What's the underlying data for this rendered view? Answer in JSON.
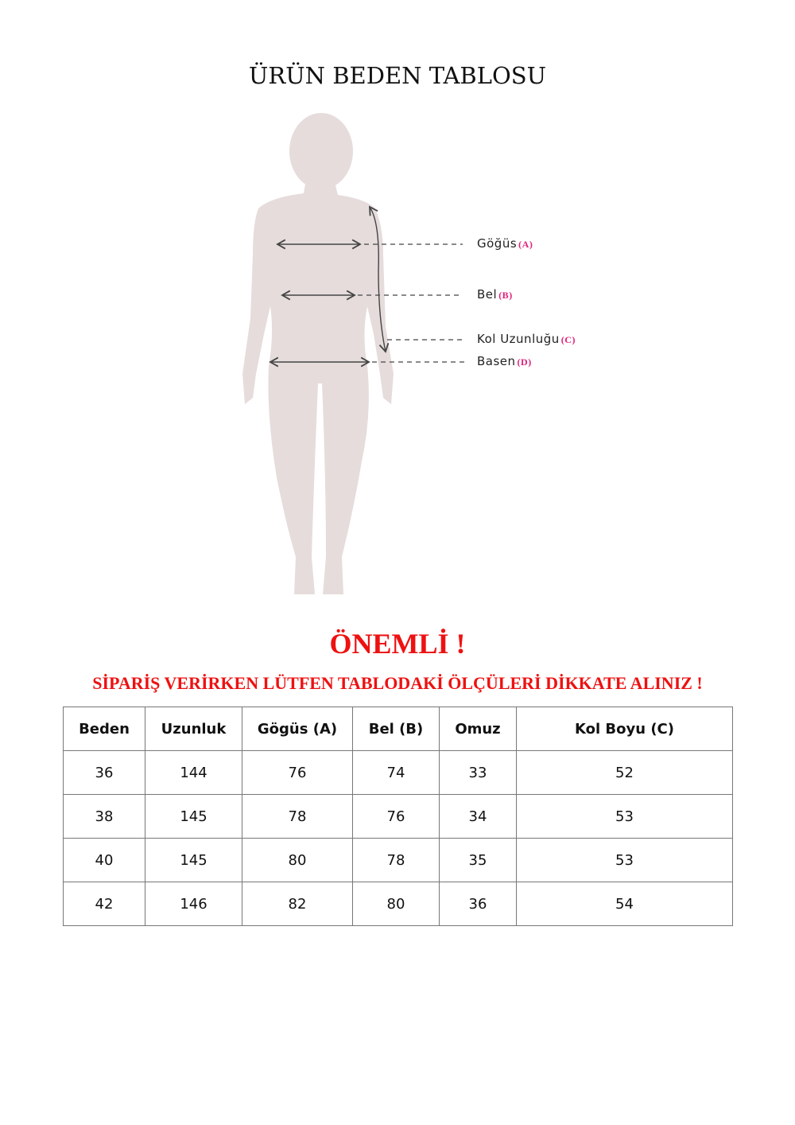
{
  "title": "ÜRÜN BEDEN TABLOSU",
  "figure": {
    "labels": [
      {
        "text": "Göğüs",
        "key": "(A)"
      },
      {
        "text": "Bel",
        "key": "(B)"
      },
      {
        "text": "Kol Uzunluğu",
        "key": "(C)"
      },
      {
        "text": "Basen",
        "key": "(D)"
      }
    ],
    "silhouette_color": "#e6dcdc",
    "key_color": "#e0207a"
  },
  "notice": {
    "heading": "ÖNEMLİ !",
    "text": "SİPARİŞ VERİRKEN LÜTFEN TABLODAKİ ÖLÇÜLERİ DİKKATE ALINIZ !",
    "color": "#ee1111"
  },
  "table": {
    "headers": [
      "Beden",
      "Uzunluk",
      "Gögüs (A)",
      "Bel (B)",
      "Omuz",
      "Kol Boyu (C)"
    ],
    "rows": [
      [
        "36",
        "144",
        "76",
        "74",
        "33",
        "52"
      ],
      [
        "38",
        "145",
        "78",
        "76",
        "34",
        "53"
      ],
      [
        "40",
        "145",
        "80",
        "78",
        "35",
        "53"
      ],
      [
        "42",
        "146",
        "82",
        "80",
        "36",
        "54"
      ]
    ]
  }
}
